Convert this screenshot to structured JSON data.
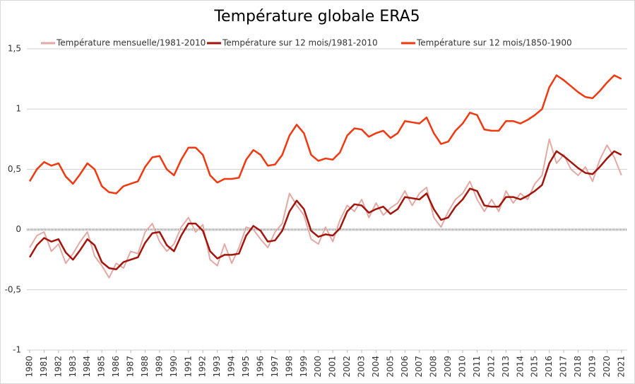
{
  "chart_data": {
    "type": "line",
    "title": "Température globale ERA5",
    "x": [
      1980,
      1980.5,
      1981,
      1981.5,
      1982,
      1982.5,
      1983,
      1983.5,
      1984,
      1984.5,
      1985,
      1985.5,
      1986,
      1986.5,
      1987,
      1987.5,
      1988,
      1988.5,
      1989,
      1989.5,
      1990,
      1990.5,
      1991,
      1991.5,
      1992,
      1992.5,
      1993,
      1993.5,
      1994,
      1994.5,
      1995,
      1995.5,
      1996,
      1996.5,
      1997,
      1997.5,
      1998,
      1998.5,
      1999,
      1999.5,
      2000,
      2000.5,
      2001,
      2001.5,
      2002,
      2002.5,
      2003,
      2003.5,
      2004,
      2004.5,
      2005,
      2005.5,
      2006,
      2006.5,
      2007,
      2007.5,
      2008,
      2008.5,
      2009,
      2009.5,
      2010,
      2010.5,
      2011,
      2011.5,
      2012,
      2012.5,
      2013,
      2013.5,
      2014,
      2014.5,
      2015,
      2015.5,
      2016,
      2016.5,
      2017,
      2017.5,
      2018,
      2018.5,
      2019,
      2019.5,
      2020,
      2020.5,
      2021
    ],
    "series": [
      {
        "name": "Température mensuelle/1981-2010",
        "color": "#e3a9a4",
        "width": 2,
        "values": [
          -0.15,
          -0.05,
          -0.02,
          -0.18,
          -0.12,
          -0.28,
          -0.2,
          -0.1,
          -0.02,
          -0.22,
          -0.3,
          -0.4,
          -0.28,
          -0.32,
          -0.18,
          -0.2,
          -0.02,
          0.05,
          -0.1,
          -0.18,
          -0.12,
          0.02,
          0.1,
          -0.02,
          0.04,
          -0.25,
          -0.3,
          -0.12,
          -0.28,
          -0.15,
          0.02,
          0.0,
          -0.08,
          -0.15,
          -0.02,
          0.05,
          0.3,
          0.2,
          0.12,
          -0.08,
          -0.12,
          0.02,
          -0.1,
          0.08,
          0.2,
          0.15,
          0.25,
          0.1,
          0.22,
          0.12,
          0.18,
          0.22,
          0.32,
          0.2,
          0.3,
          0.35,
          0.1,
          0.02,
          0.15,
          0.25,
          0.3,
          0.4,
          0.25,
          0.15,
          0.25,
          0.15,
          0.32,
          0.22,
          0.3,
          0.25,
          0.38,
          0.45,
          0.75,
          0.55,
          0.62,
          0.5,
          0.45,
          0.52,
          0.4,
          0.58,
          0.7,
          0.6,
          0.45
        ]
      },
      {
        "name": "Température sur 12 mois/1981-2010",
        "color": "#a3140a",
        "width": 2.5,
        "values": [
          -0.23,
          -0.13,
          -0.07,
          -0.1,
          -0.08,
          -0.19,
          -0.25,
          -0.17,
          -0.08,
          -0.13,
          -0.27,
          -0.32,
          -0.33,
          -0.27,
          -0.25,
          -0.23,
          -0.11,
          -0.03,
          -0.02,
          -0.13,
          -0.18,
          -0.05,
          0.05,
          0.05,
          -0.01,
          -0.18,
          -0.24,
          -0.21,
          -0.21,
          -0.2,
          -0.05,
          0.03,
          -0.01,
          -0.1,
          -0.09,
          -0.01,
          0.15,
          0.24,
          0.17,
          -0.01,
          -0.06,
          -0.04,
          -0.05,
          0.01,
          0.15,
          0.21,
          0.2,
          0.14,
          0.17,
          0.19,
          0.13,
          0.17,
          0.27,
          0.26,
          0.25,
          0.3,
          0.17,
          0.08,
          0.1,
          0.19,
          0.25,
          0.34,
          0.32,
          0.2,
          0.19,
          0.19,
          0.27,
          0.27,
          0.25,
          0.28,
          0.32,
          0.37,
          0.55,
          0.65,
          0.61,
          0.56,
          0.51,
          0.47,
          0.46,
          0.52,
          0.59,
          0.65,
          0.62
        ]
      },
      {
        "name": "Température sur 12 mois/1850-1900",
        "color": "#f2380f",
        "width": 2.5,
        "values": [
          0.4,
          0.5,
          0.56,
          0.53,
          0.55,
          0.44,
          0.38,
          0.46,
          0.55,
          0.5,
          0.36,
          0.31,
          0.3,
          0.36,
          0.38,
          0.4,
          0.52,
          0.6,
          0.61,
          0.5,
          0.45,
          0.58,
          0.68,
          0.68,
          0.62,
          0.45,
          0.39,
          0.42,
          0.42,
          0.43,
          0.58,
          0.66,
          0.62,
          0.53,
          0.54,
          0.62,
          0.78,
          0.87,
          0.8,
          0.62,
          0.57,
          0.59,
          0.58,
          0.64,
          0.78,
          0.84,
          0.83,
          0.77,
          0.8,
          0.82,
          0.76,
          0.8,
          0.9,
          0.89,
          0.88,
          0.93,
          0.8,
          0.71,
          0.73,
          0.82,
          0.88,
          0.97,
          0.95,
          0.83,
          0.82,
          0.82,
          0.9,
          0.9,
          0.88,
          0.91,
          0.95,
          1.0,
          1.18,
          1.28,
          1.24,
          1.19,
          1.14,
          1.1,
          1.09,
          1.15,
          1.22,
          1.28,
          1.25
        ]
      }
    ],
    "xlim": [
      1980,
      2021.4
    ],
    "xticks": [
      1980,
      1981,
      1982,
      1983,
      1984,
      1985,
      1986,
      1987,
      1988,
      1989,
      1990,
      1991,
      1992,
      1993,
      1994,
      1995,
      1996,
      1997,
      1998,
      1999,
      2000,
      2001,
      2002,
      2003,
      2004,
      2005,
      2006,
      2007,
      2008,
      2009,
      2010,
      2011,
      2012,
      2013,
      2014,
      2015,
      2016,
      2017,
      2018,
      2019,
      2020,
      2021
    ],
    "ylim": [
      -1,
      1.5
    ],
    "yticks": [
      {
        "value": -1,
        "label": "-1"
      },
      {
        "value": -0.5,
        "label": "-0,5"
      },
      0,
      {
        "value": 0.5,
        "label": "0,5"
      },
      1,
      {
        "value": 1.5,
        "label": "1,5"
      }
    ],
    "grid": true
  }
}
